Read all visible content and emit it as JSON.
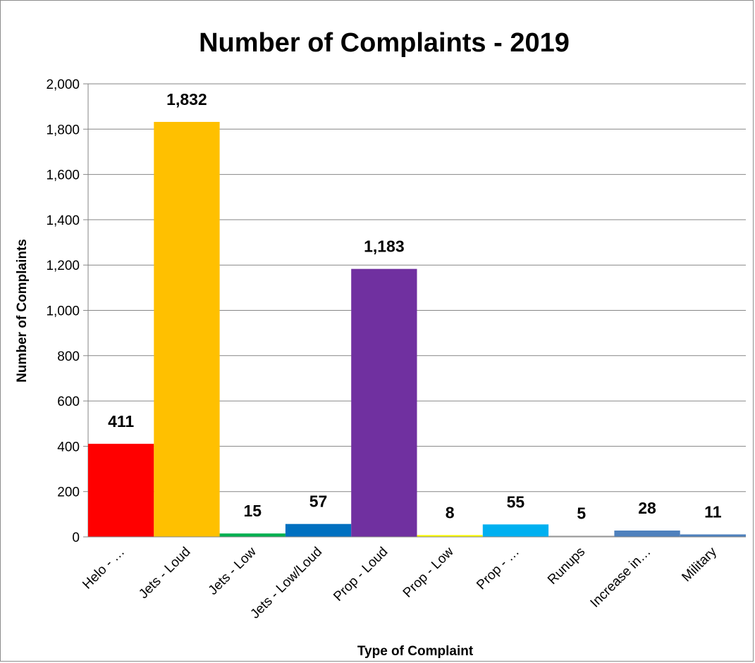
{
  "chart_data": {
    "type": "bar",
    "title": "Number of Complaints - 2019",
    "xlabel": "Type of Complaint",
    "ylabel": "Number of Complaints",
    "categories": [
      "Helo - …",
      "Jets - Loud",
      "Jets - Low",
      "Jets - Low/Loud",
      "Prop - Loud",
      "Prop - Low",
      "Prop - …",
      "Runups",
      "Increase in…",
      "Military"
    ],
    "values": [
      411,
      1832,
      15,
      57,
      1183,
      8,
      55,
      5,
      28,
      11
    ],
    "data_labels": [
      "411",
      "1,832",
      "15",
      "57",
      "1,183",
      "8",
      "55",
      "5",
      "28",
      "11"
    ],
    "colors": [
      "#ff0000",
      "#ffc000",
      "#00b050",
      "#0070c0",
      "#7030a0",
      "#ffff00",
      "#00b0f0",
      "#a5a5a5",
      "#4f81bd",
      "#4f81bd"
    ],
    "ylim": [
      0,
      2000
    ],
    "yticks": [
      0,
      200,
      400,
      600,
      800,
      1000,
      1200,
      1400,
      1600,
      1800,
      2000
    ],
    "ytick_labels": [
      "0",
      "200",
      "400",
      "600",
      "800",
      "1,000",
      "1,200",
      "1,400",
      "1,600",
      "1,800",
      "2,000"
    ],
    "grid": true,
    "legend": "none"
  }
}
